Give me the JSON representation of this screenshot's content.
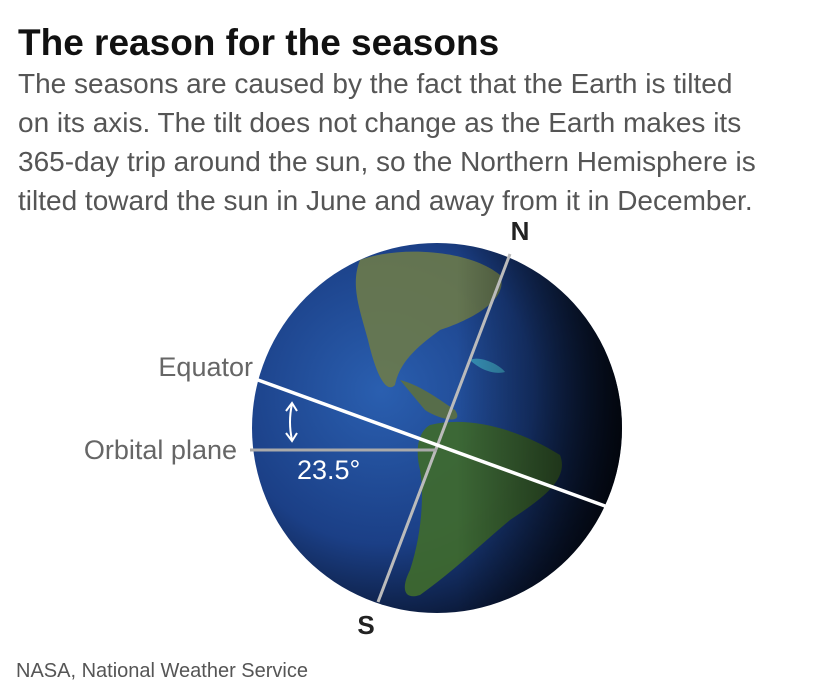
{
  "header": {
    "title": "The reason for the seasons",
    "description_lines": [
      "The seasons are caused by the fact that the Earth is tilted",
      "on its axis. The tilt does not change as the Earth makes its",
      "365-day trip around the sun, so the Northern Hemisphere is",
      "tilted toward the sun in June and away from it in December."
    ]
  },
  "diagram": {
    "north_label": "N",
    "south_label": "S",
    "equator_label": "Equator",
    "orbital_plane_label": "Orbital plane",
    "tilt_label": "23.5°"
  },
  "footer": {
    "source": "NASA, National Weather Service"
  }
}
